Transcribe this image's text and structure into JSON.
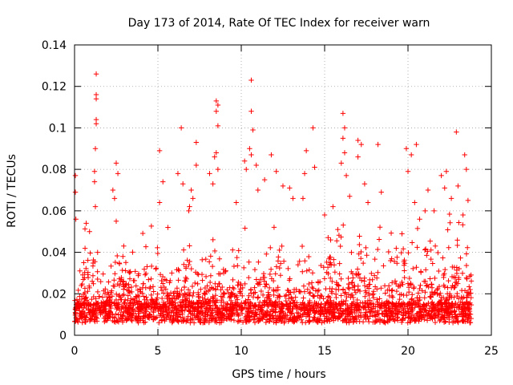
{
  "chart_data": {
    "type": "scatter",
    "title": "Day 173 of 2014, Rate Of TEC Index for receiver warn",
    "xlabel": "GPS time / hours",
    "ylabel": "ROTI / TECUs",
    "xlim": [
      0,
      25
    ],
    "ylim": [
      0,
      0.14
    ],
    "x_ticks": [
      0,
      5,
      10,
      15,
      20,
      25
    ],
    "x_tick_labels": [
      "0",
      "5",
      "10",
      "15",
      "20",
      "25"
    ],
    "y_ticks": [
      0,
      0.02,
      0.04,
      0.06,
      0.08,
      0.1,
      0.12,
      0.14
    ],
    "y_tick_labels": [
      "0",
      "0.02",
      "0.04",
      "0.06",
      "0.08",
      "0.1",
      "0.12",
      "0.14"
    ],
    "grid": true,
    "marker": "+",
    "series": [
      {
        "name": "ROTI",
        "color": "#ff0000",
        "x_range": [
          0,
          23.8
        ],
        "baseline": 0.012,
        "points": [
          {
            "x": 0.05,
            "y": 0.077
          },
          {
            "x": 0.05,
            "y": 0.069
          },
          {
            "x": 0.08,
            "y": 0.056
          },
          {
            "x": 1.3,
            "y": 0.126
          },
          {
            "x": 1.3,
            "y": 0.116
          },
          {
            "x": 1.3,
            "y": 0.114
          },
          {
            "x": 1.3,
            "y": 0.104
          },
          {
            "x": 1.3,
            "y": 0.102
          },
          {
            "x": 1.25,
            "y": 0.09
          },
          {
            "x": 1.2,
            "y": 0.079
          },
          {
            "x": 1.2,
            "y": 0.074
          },
          {
            "x": 1.25,
            "y": 0.062
          },
          {
            "x": 0.7,
            "y": 0.054
          },
          {
            "x": 0.9,
            "y": 0.05
          },
          {
            "x": 2.3,
            "y": 0.07
          },
          {
            "x": 2.5,
            "y": 0.083
          },
          {
            "x": 2.6,
            "y": 0.078
          },
          {
            "x": 2.4,
            "y": 0.066
          },
          {
            "x": 2.5,
            "y": 0.055
          },
          {
            "x": 2.9,
            "y": 0.038
          },
          {
            "x": 5.1,
            "y": 0.089
          },
          {
            "x": 5.3,
            "y": 0.074
          },
          {
            "x": 5.1,
            "y": 0.064
          },
          {
            "x": 5.6,
            "y": 0.052
          },
          {
            "x": 6.4,
            "y": 0.1
          },
          {
            "x": 6.2,
            "y": 0.078
          },
          {
            "x": 6.5,
            "y": 0.073
          },
          {
            "x": 6.9,
            "y": 0.062
          },
          {
            "x": 7.0,
            "y": 0.07
          },
          {
            "x": 7.3,
            "y": 0.093
          },
          {
            "x": 7.3,
            "y": 0.082
          },
          {
            "x": 7.1,
            "y": 0.066
          },
          {
            "x": 8.1,
            "y": 0.078
          },
          {
            "x": 8.5,
            "y": 0.113
          },
          {
            "x": 8.6,
            "y": 0.111
          },
          {
            "x": 8.5,
            "y": 0.108
          },
          {
            "x": 8.6,
            "y": 0.101
          },
          {
            "x": 8.5,
            "y": 0.088
          },
          {
            "x": 8.4,
            "y": 0.086
          },
          {
            "x": 8.6,
            "y": 0.08
          },
          {
            "x": 8.3,
            "y": 0.073
          },
          {
            "x": 9.7,
            "y": 0.064
          },
          {
            "x": 10.2,
            "y": 0.084
          },
          {
            "x": 10.3,
            "y": 0.08
          },
          {
            "x": 10.5,
            "y": 0.09
          },
          {
            "x": 10.6,
            "y": 0.123
          },
          {
            "x": 10.6,
            "y": 0.108
          },
          {
            "x": 10.7,
            "y": 0.099
          },
          {
            "x": 10.6,
            "y": 0.087
          },
          {
            "x": 10.9,
            "y": 0.082
          },
          {
            "x": 11.0,
            "y": 0.07
          },
          {
            "x": 11.4,
            "y": 0.075
          },
          {
            "x": 11.8,
            "y": 0.087
          },
          {
            "x": 12.1,
            "y": 0.079
          },
          {
            "x": 12.5,
            "y": 0.072
          },
          {
            "x": 12.9,
            "y": 0.071
          },
          {
            "x": 13.1,
            "y": 0.066
          },
          {
            "x": 13.9,
            "y": 0.089
          },
          {
            "x": 13.8,
            "y": 0.078
          },
          {
            "x": 13.7,
            "y": 0.066
          },
          {
            "x": 14.3,
            "y": 0.1
          },
          {
            "x": 14.4,
            "y": 0.081
          },
          {
            "x": 15.0,
            "y": 0.058
          },
          {
            "x": 15.5,
            "y": 0.062
          },
          {
            "x": 16.1,
            "y": 0.107
          },
          {
            "x": 16.2,
            "y": 0.1
          },
          {
            "x": 16.1,
            "y": 0.095
          },
          {
            "x": 16.2,
            "y": 0.088
          },
          {
            "x": 16.0,
            "y": 0.083
          },
          {
            "x": 16.3,
            "y": 0.077
          },
          {
            "x": 16.5,
            "y": 0.067
          },
          {
            "x": 17.0,
            "y": 0.094
          },
          {
            "x": 17.2,
            "y": 0.092
          },
          {
            "x": 17.0,
            "y": 0.086
          },
          {
            "x": 17.4,
            "y": 0.073
          },
          {
            "x": 17.6,
            "y": 0.064
          },
          {
            "x": 18.2,
            "y": 0.092
          },
          {
            "x": 18.4,
            "y": 0.069
          },
          {
            "x": 19.9,
            "y": 0.09
          },
          {
            "x": 20.2,
            "y": 0.087
          },
          {
            "x": 20.0,
            "y": 0.079
          },
          {
            "x": 20.5,
            "y": 0.092
          },
          {
            "x": 20.4,
            "y": 0.064
          },
          {
            "x": 20.7,
            "y": 0.056
          },
          {
            "x": 21.2,
            "y": 0.07
          },
          {
            "x": 22.0,
            "y": 0.077
          },
          {
            "x": 22.3,
            "y": 0.079
          },
          {
            "x": 22.2,
            "y": 0.071
          },
          {
            "x": 22.6,
            "y": 0.066
          },
          {
            "x": 22.9,
            "y": 0.098
          },
          {
            "x": 23.0,
            "y": 0.072
          },
          {
            "x": 23.4,
            "y": 0.087
          },
          {
            "x": 23.5,
            "y": 0.08
          },
          {
            "x": 23.6,
            "y": 0.065
          },
          {
            "x": 23.3,
            "y": 0.058
          }
        ]
      }
    ]
  }
}
